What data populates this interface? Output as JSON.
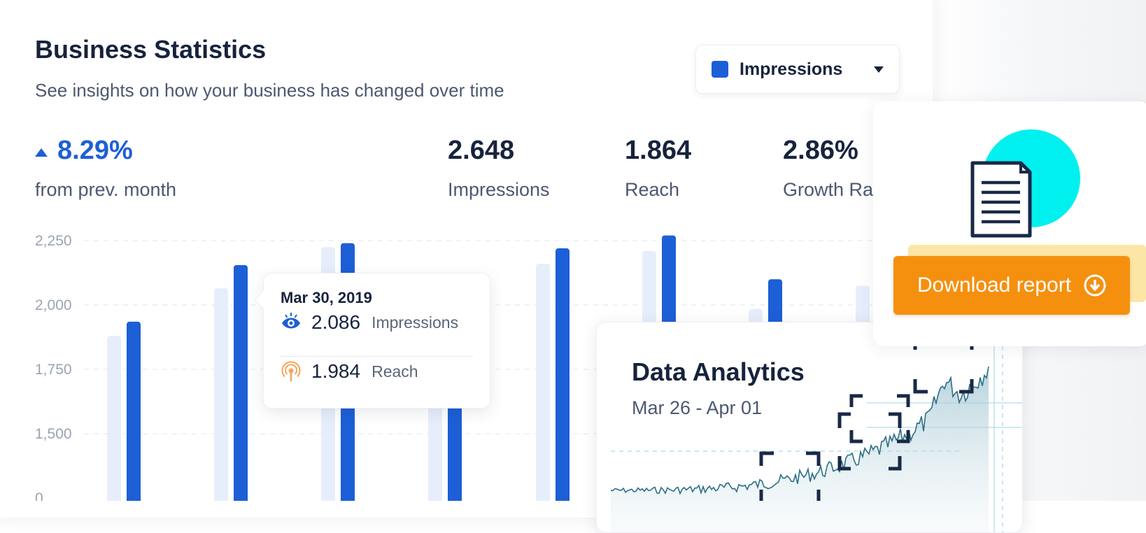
{
  "header": {
    "title": "Business Statistics",
    "subtitle": "See insights on how your business has changed over time",
    "metric_select": "Impressions"
  },
  "stats": {
    "change_value": "8.29%",
    "change_label": "from prev. month",
    "impressions_value": "2.648",
    "impressions_label": "Impressions",
    "reach_value": "1.864",
    "reach_label": "Reach",
    "growth_value": "2.86%",
    "growth_label": "Growth Ra"
  },
  "tooltip": {
    "date": "Mar 30, 2019",
    "impressions_value": "2.086",
    "impressions_label": "Impressions",
    "reach_value": "1.984",
    "reach_label": "Reach"
  },
  "analytics": {
    "title": "Data Analytics",
    "range": "Mar 26 - Apr 01"
  },
  "report": {
    "button_label": "Download report"
  },
  "colors": {
    "accent": "#1d5fd6",
    "bar_light": "#e7eefb",
    "button": "#f5900f",
    "doc_circle": "#00f0f0"
  },
  "chart_data": {
    "type": "bar",
    "ylabel_ticks": [
      "2,250",
      "2,000",
      "1,750",
      "1,500",
      "0"
    ],
    "y_tick_values": [
      2250,
      2000,
      1750,
      1500,
      0
    ],
    "series": [
      {
        "values": [
          1880,
          2065,
          2225,
          null,
          2160,
          2210,
          1985,
          2075
        ]
      },
      {
        "values": [
          1935,
          2155,
          2240,
          null,
          2220,
          2270,
          2100,
          null
        ]
      }
    ],
    "grid": true
  }
}
